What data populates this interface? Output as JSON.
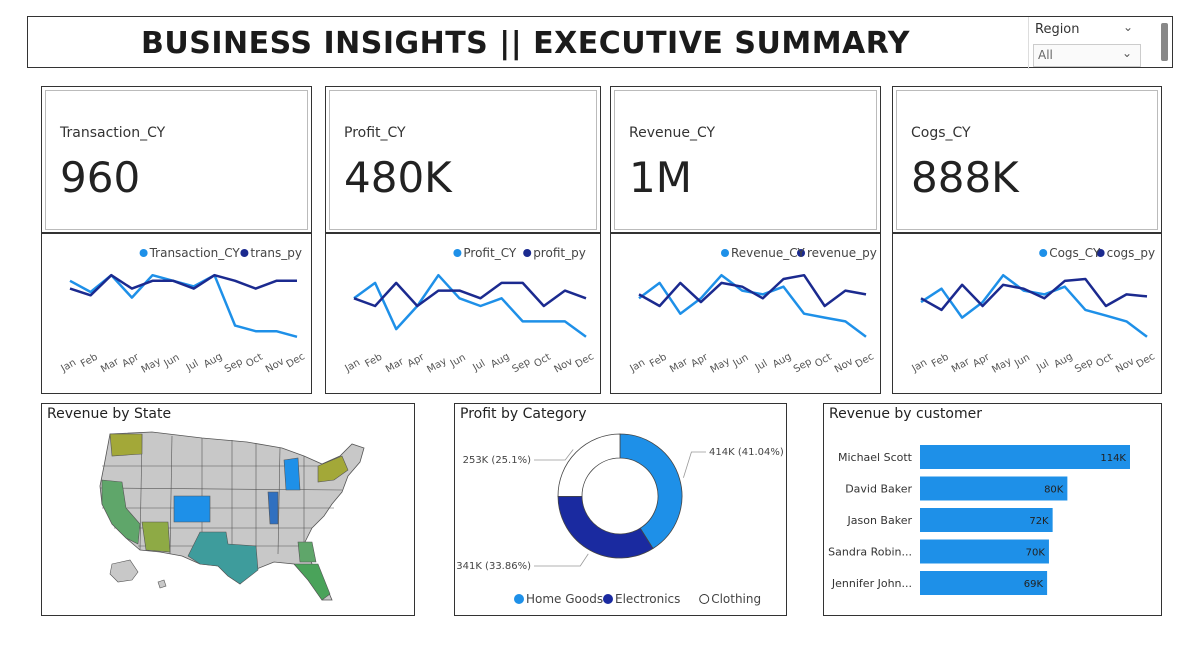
{
  "header": {
    "title": "BUSINESS INSIGHTS || EXECUTIVE SUMMARY",
    "region_label": "Region",
    "region_value": "All"
  },
  "kpis": [
    {
      "label": "Transaction_CY",
      "value": "960"
    },
    {
      "label": "Profit_CY",
      "value": "480K"
    },
    {
      "label": "Revenue_CY",
      "value": "1M"
    },
    {
      "label": "Cogs_CY",
      "value": "888K"
    }
  ],
  "colors": {
    "cy": "#1e90e8",
    "py": "#1b2a8f",
    "home_goods": "#1e90e8",
    "electronics": "#1a2aa0",
    "clothing": "#ffffff",
    "bar": "#1e90e8",
    "highlight_state": "#1e90e8",
    "map_default": "#c8c8c8"
  },
  "chart_data": [
    {
      "type": "line",
      "x": [
        "Jan",
        "Feb",
        "Mar",
        "Apr",
        "May",
        "Jun",
        "Jul",
        "Aug",
        "Sep",
        "Oct",
        "Nov",
        "Dec"
      ],
      "series": [
        {
          "name": "Transaction_CY",
          "values": [
            95,
            85,
            100,
            80,
            100,
            95,
            90,
            100,
            55,
            50,
            50,
            45
          ]
        },
        {
          "name": "trans_py",
          "values": [
            88,
            82,
            100,
            88,
            95,
            95,
            88,
            100,
            95,
            88,
            95,
            95
          ]
        }
      ],
      "legend": [
        "Transaction_CY",
        "trans_py"
      ],
      "legend_position": "top-right"
    },
    {
      "type": "line",
      "x": [
        "Jan",
        "Feb",
        "Mar",
        "Apr",
        "May",
        "Jun",
        "Jul",
        "Aug",
        "Sep",
        "Oct",
        "Nov",
        "Dec"
      ],
      "series": [
        {
          "name": "Profit_CY",
          "values": [
            42,
            44,
            38,
            41,
            45,
            42,
            41,
            42,
            39,
            39,
            39,
            37
          ]
        },
        {
          "name": "profit_py",
          "values": [
            42,
            41,
            44,
            41,
            43,
            43,
            42,
            44,
            44,
            41,
            43,
            42
          ]
        }
      ],
      "legend": [
        "Profit_CY",
        "profit_py"
      ],
      "legend_position": "top-right"
    },
    {
      "type": "line",
      "x": [
        "Jan",
        "Feb",
        "Mar",
        "Apr",
        "May",
        "Jun",
        "Jul",
        "Aug",
        "Sep",
        "Oct",
        "Nov",
        "Dec"
      ],
      "series": [
        {
          "name": "Revenue_CY",
          "values": [
            88,
            96,
            80,
            88,
            100,
            92,
            90,
            94,
            80,
            78,
            76,
            68
          ]
        },
        {
          "name": "revenue_py",
          "values": [
            90,
            84,
            96,
            86,
            96,
            94,
            88,
            98,
            100,
            84,
            92,
            90
          ]
        }
      ],
      "legend": [
        "Revenue_CY",
        "revenue_py"
      ],
      "legend_position": "top-right"
    },
    {
      "type": "line",
      "x": [
        "Jan",
        "Feb",
        "Mar",
        "Apr",
        "May",
        "Jun",
        "Jul",
        "Aug",
        "Sep",
        "Oct",
        "Nov",
        "Dec"
      ],
      "series": [
        {
          "name": "Cogs_CY",
          "values": [
            78,
            85,
            70,
            78,
            92,
            84,
            82,
            86,
            74,
            71,
            68,
            60
          ]
        },
        {
          "name": "cogs_py",
          "values": [
            80,
            74,
            87,
            76,
            87,
            85,
            80,
            89,
            90,
            76,
            82,
            81
          ]
        }
      ],
      "legend": [
        "Cogs_CY",
        "cogs_py"
      ],
      "legend_position": "top-right"
    },
    {
      "type": "map",
      "title": "Revenue by State",
      "highlighted_states": [
        "Colorado",
        "Texas",
        "California",
        "Arizona",
        "Washington",
        "Florida",
        "Georgia",
        "Michigan",
        "Illinois",
        "New York"
      ]
    },
    {
      "type": "donut",
      "title": "Profit by Category",
      "slices": [
        {
          "name": "Home Goods",
          "value": 414,
          "label": "414K (41.04%)"
        },
        {
          "name": "Electronics",
          "value": 341,
          "label": "341K (33.86%)"
        },
        {
          "name": "Clothing",
          "value": 253,
          "label": "253K (25.1%)"
        }
      ],
      "legend": [
        "Home Goods",
        "Electronics",
        "Clothing"
      ],
      "legend_position": "bottom"
    },
    {
      "type": "bar",
      "orientation": "horizontal",
      "title": "Revenue by customer",
      "categories": [
        "Michael Scott",
        "David Baker",
        "Jason Baker",
        "Sandra Robin...",
        "Jennifer John..."
      ],
      "values": [
        114,
        80,
        72,
        70,
        69
      ],
      "data_labels": [
        "114K",
        "80K",
        "72K",
        "70K",
        "69K"
      ]
    }
  ]
}
